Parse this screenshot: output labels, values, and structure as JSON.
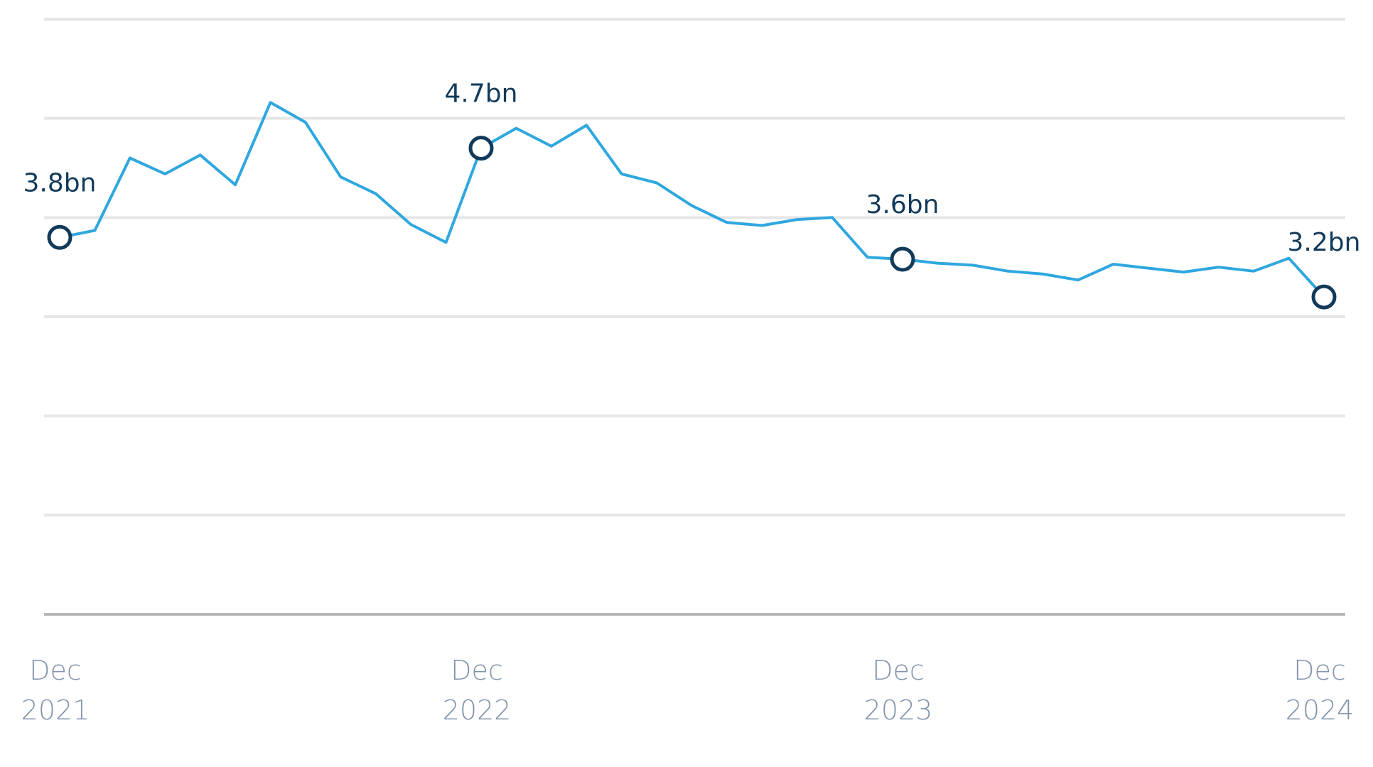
{
  "colors": {
    "line": "#2fa7df",
    "marker_stroke": "#123a5a",
    "annotation_text": "#123a5a",
    "tick_text": "#8395ad",
    "grid": "#e6e6e6",
    "baseline": "#b7b7b7"
  },
  "chart_data": {
    "type": "line",
    "title": "",
    "xlabel": "",
    "ylabel": "",
    "grid": true,
    "y_axis_labels_shown": false,
    "ylim": [
      0,
      6.0
    ],
    "x": [
      "2021-12",
      "2022-01",
      "2022-02",
      "2022-03",
      "2022-04",
      "2022-05",
      "2022-06",
      "2022-07",
      "2022-08",
      "2022-09",
      "2022-10",
      "2022-11",
      "2022-12",
      "2023-01",
      "2023-02",
      "2023-03",
      "2023-04",
      "2023-05",
      "2023-06",
      "2023-07",
      "2023-08",
      "2023-09",
      "2023-10",
      "2023-11",
      "2023-12",
      "2024-01",
      "2024-02",
      "2024-03",
      "2024-04",
      "2024-05",
      "2024-06",
      "2024-07",
      "2024-08",
      "2024-09",
      "2024-10",
      "2024-11",
      "2024-12"
    ],
    "series": [
      {
        "values": [
          3.8,
          3.87,
          4.6,
          4.44,
          4.63,
          4.33,
          5.16,
          4.96,
          4.41,
          4.24,
          3.93,
          3.75,
          4.7,
          4.9,
          4.72,
          4.93,
          4.44,
          4.35,
          4.12,
          3.95,
          3.92,
          3.98,
          4.0,
          3.6,
          3.58,
          3.54,
          3.52,
          3.46,
          3.43,
          3.37,
          3.53,
          3.49,
          3.45,
          3.5,
          3.46,
          3.59,
          3.2
        ]
      }
    ],
    "annotations": [
      {
        "x": "2021-12",
        "label": "3.8bn"
      },
      {
        "x": "2022-12",
        "label": "4.7bn"
      },
      {
        "x": "2023-12",
        "label": "3.6bn"
      },
      {
        "x": "2024-12",
        "label": "3.2bn"
      }
    ],
    "x_ticks": [
      {
        "x": "2021-12",
        "line1": "Dec",
        "line2": "2021"
      },
      {
        "x": "2022-12",
        "line1": "Dec",
        "line2": "2022"
      },
      {
        "x": "2023-12",
        "line1": "Dec",
        "line2": "2023"
      },
      {
        "x": "2024-12",
        "line1": "Dec",
        "line2": "2024"
      }
    ]
  }
}
